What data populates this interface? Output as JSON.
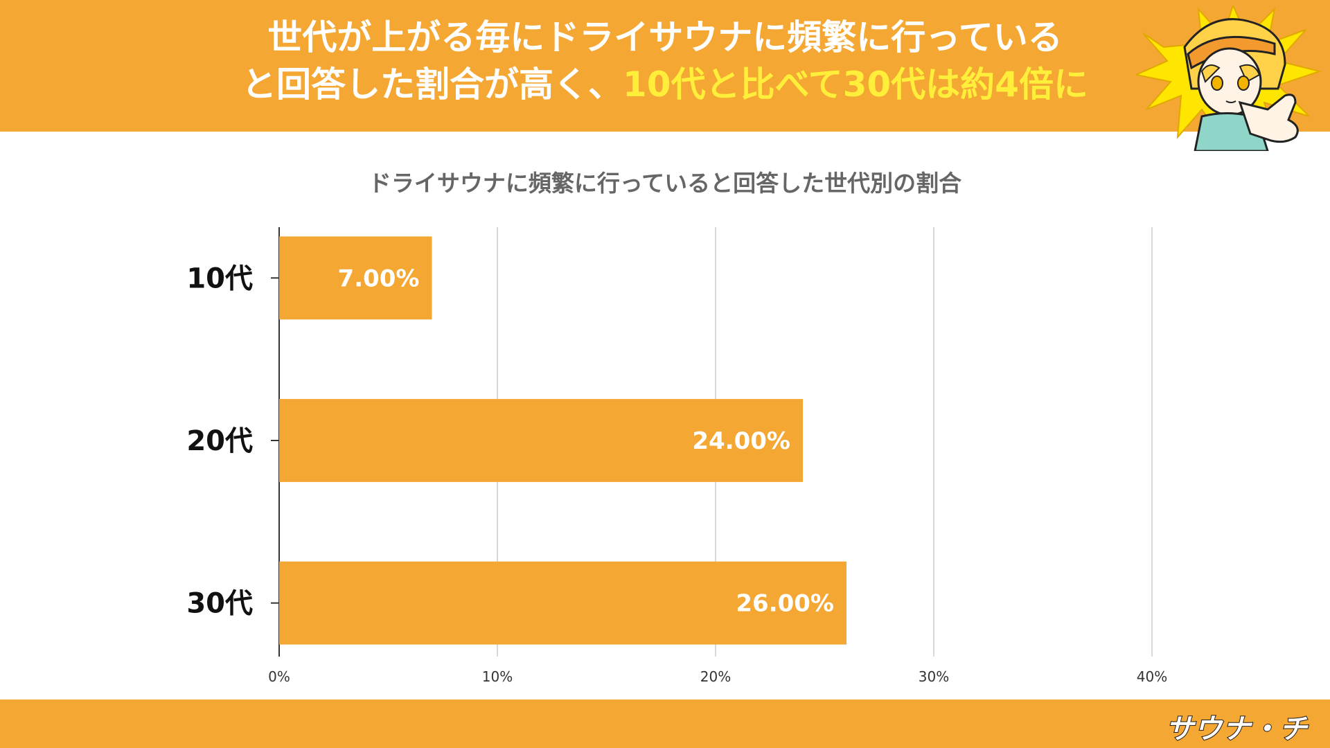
{
  "header": {
    "headline_line1": "世代が上がる毎にドライサウナに頻繁に行っている",
    "headline_line2_a": "と回答した割合が高く、",
    "headline_line2_b": "10代と比べて30代は約4倍に"
  },
  "colors": {
    "brand_orange": "#f5a733",
    "highlight_yellow": "#ffef3a",
    "bar": "#f5a733",
    "grid": "#cccccc",
    "axis": "#333333"
  },
  "chart_data": {
    "type": "bar",
    "orientation": "horizontal",
    "title": "ドライサウナに頻繁に行っていると回答した世代別の割合",
    "categories": [
      "10代",
      "20代",
      "30代"
    ],
    "values": [
      7,
      24,
      26
    ],
    "value_labels": [
      "7.00%",
      "24.00%",
      "26.00%"
    ],
    "xlim": [
      0,
      48
    ],
    "xticks": [
      0,
      10,
      20,
      30,
      40
    ],
    "xtick_labels": [
      "0%",
      "10%",
      "20%",
      "30%",
      "40%"
    ],
    "grid": true,
    "xlabel": "",
    "ylabel": ""
  },
  "footer": {
    "logo_text": "サウナ・チ",
    "logo_icon": "sauna-logo-icon"
  },
  "mascot": {
    "icon": "pointing-character-icon"
  }
}
